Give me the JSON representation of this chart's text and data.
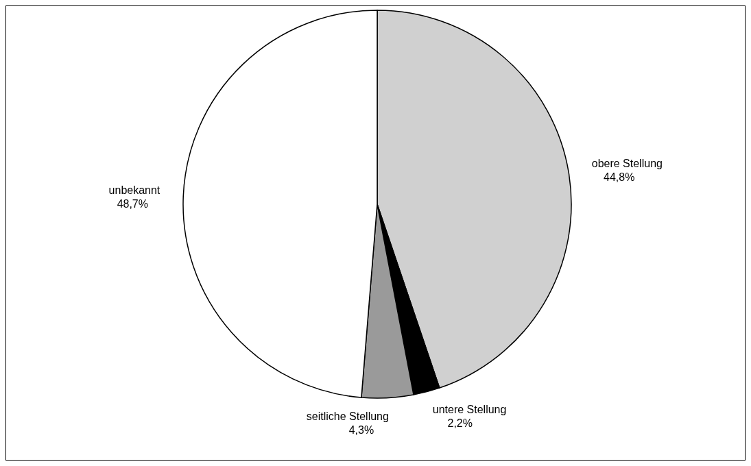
{
  "chart_data": {
    "type": "pie",
    "categories": [
      "obere Stellung",
      "untere Stellung",
      "seitliche Stellung",
      "unbekannt"
    ],
    "values": [
      44.8,
      2.2,
      4.3,
      48.7
    ],
    "value_labels": [
      "44,8%",
      "2,2%",
      "4,3%",
      "48,7%"
    ],
    "colors": [
      "#d0d0d0",
      "#000000",
      "#9a9a9a",
      "#ffffff"
    ],
    "legend": false
  }
}
